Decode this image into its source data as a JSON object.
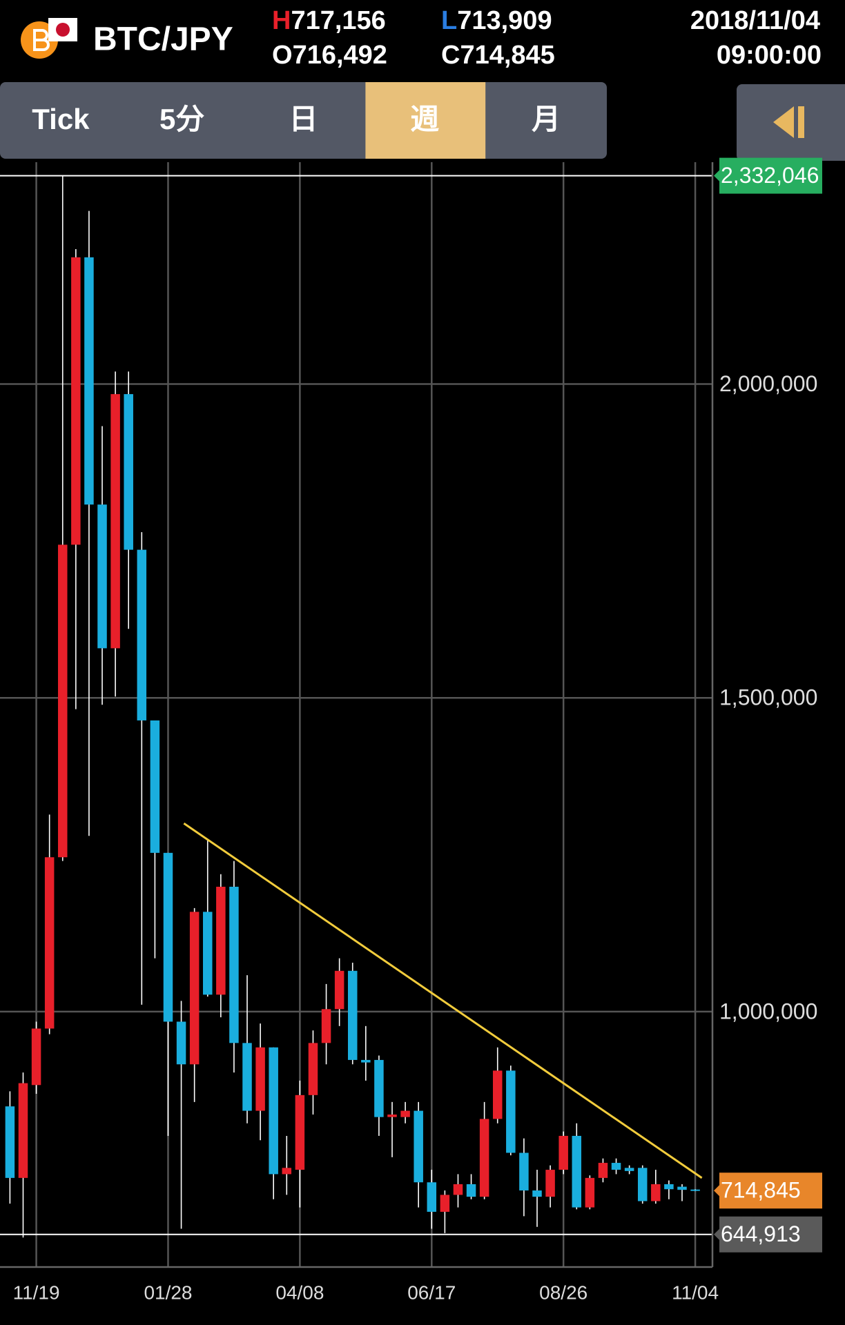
{
  "header": {
    "pair": "BTC/JPY",
    "high_letter": "H",
    "high": "717,156",
    "low_letter": "L",
    "low": "713,909",
    "open_letter": "O",
    "open": "716,492",
    "close_letter": "C",
    "close": "714,845",
    "date": "2018/11/04",
    "time": "09:00:00"
  },
  "tabs": [
    "Tick",
    "5分",
    "日",
    "週",
    "月"
  ],
  "selected_tab": 3,
  "chart_data": {
    "type": "candlestick",
    "categories": [
      null,
      null,
      "11/19",
      null,
      null,
      null,
      null,
      null,
      null,
      null,
      null,
      null,
      "01/28",
      null,
      null,
      null,
      null,
      null,
      null,
      null,
      null,
      null,
      "04/08",
      null,
      null,
      null,
      null,
      null,
      null,
      null,
      null,
      null,
      "06/17",
      null,
      null,
      null,
      null,
      null,
      null,
      null,
      null,
      null,
      "08/26",
      null,
      null,
      null,
      null,
      null,
      null,
      null,
      null,
      null,
      "11/04"
    ],
    "open": [
      849000,
      735000,
      883000,
      973000,
      1246000,
      1744000,
      2202000,
      1808000,
      1579000,
      1984000,
      1736000,
      1464000,
      1253000,
      984000,
      916000,
      1159000,
      1027000,
      1199000,
      950000,
      842000,
      943000,
      741000,
      748000,
      867000,
      950000,
      1004000,
      1065000,
      923000,
      923000,
      832000,
      832000,
      842000,
      728000,
      681000,
      708000,
      725000,
      705000,
      829000,
      906000,
      775000,
      715000,
      705000,
      748000,
      802000,
      688000,
      735000,
      759000,
      751000,
      751000,
      698000,
      725000,
      721000,
      716492
    ],
    "high": [
      873000,
      903000,
      984000,
      1314000,
      2332046,
      2215000,
      2276000,
      1933000,
      2020000,
      2020000,
      1764000,
      1464000,
      1253000,
      1017000,
      1165000,
      1273000,
      1219000,
      1240000,
      1058000,
      981000,
      943000,
      802000,
      890000,
      970000,
      1044000,
      1085000,
      1078000,
      977000,
      930000,
      856000,
      856000,
      856000,
      748000,
      715000,
      741000,
      741000,
      856000,
      943000,
      914000,
      798000,
      748000,
      755000,
      809000,
      822000,
      739000,
      766000,
      766000,
      755000,
      755000,
      748000,
      731000,
      725000,
      717156
    ],
    "low": [
      694000,
      640000,
      869000,
      964000,
      1240000,
      1482000,
      1280000,
      1489000,
      1502000,
      1610000,
      1011000,
      1085000,
      802000,
      654000,
      856000,
      1024000,
      991000,
      903000,
      822000,
      795000,
      701000,
      708000,
      688000,
      836000,
      916000,
      977000,
      916000,
      890000,
      802000,
      768000,
      822000,
      688000,
      654000,
      647000,
      688000,
      701000,
      701000,
      822000,
      771000,
      674000,
      657000,
      688000,
      741000,
      685000,
      685000,
      728000,
      741000,
      741000,
      694000,
      694000,
      701000,
      698000,
      713909
    ],
    "close": [
      735000,
      886000,
      973000,
      1246000,
      1744000,
      2202000,
      1808000,
      1579000,
      1984000,
      1736000,
      1464000,
      1253000,
      984000,
      916000,
      1159000,
      1027000,
      1199000,
      950000,
      842000,
      943000,
      741000,
      751000,
      867000,
      950000,
      1004000,
      1065000,
      923000,
      919000,
      832000,
      836000,
      842000,
      728000,
      681000,
      708000,
      725000,
      705000,
      829000,
      906000,
      775000,
      715000,
      705000,
      748000,
      802000,
      688000,
      735000,
      759000,
      748000,
      746000,
      698000,
      725000,
      717000,
      716000,
      714845
    ],
    "up_color": "#e8202a",
    "down_color": "#1aaede",
    "ylim": [
      593000,
      2347000
    ],
    "yticks": [
      {
        "value": 1000000,
        "label": "1,000,000"
      },
      {
        "value": 1500000,
        "label": "1,500,000"
      },
      {
        "value": 2000000,
        "label": "2,000,000"
      }
    ],
    "grid": true,
    "markers": [
      {
        "value": 2332046,
        "label": "2,332,046",
        "color": "#27ae60",
        "line": true
      },
      {
        "value": 714845,
        "label": "714,845",
        "color": "#e8862a",
        "line": false
      },
      {
        "value": 644913,
        "label": "644,913",
        "color": "#5a5a5a",
        "line": true
      }
    ],
    "trendline": {
      "x": [
        13.2,
        52.5
      ],
      "values": [
        1300000,
        735000
      ],
      "color": "#f2cc3c"
    }
  }
}
